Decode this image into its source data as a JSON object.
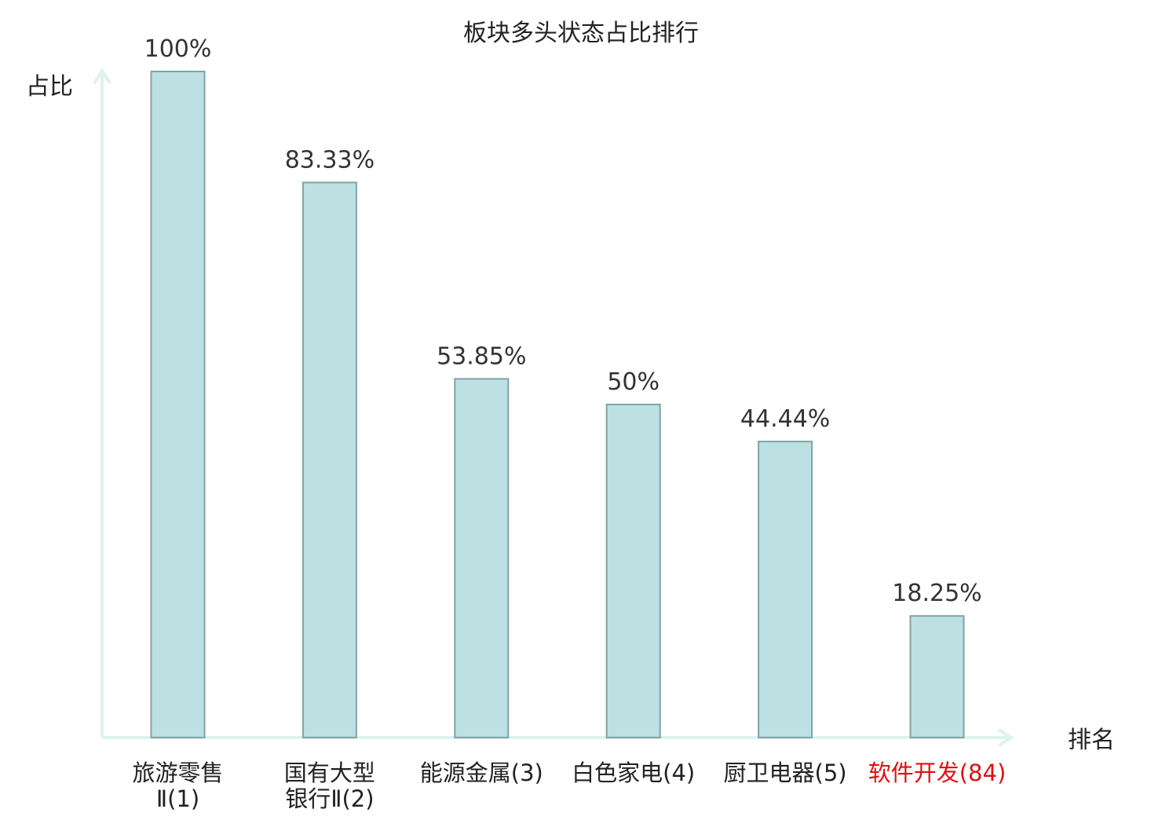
{
  "chart_data": {
    "type": "bar",
    "title": "板块多头状态占比排行",
    "ylabel": "占比",
    "xlabel": "排名",
    "ylim": [
      0,
      100
    ],
    "grid": false,
    "value_unit": "%",
    "categories": [
      {
        "lines": [
          "旅游零售",
          "Ⅱ(1)"
        ],
        "highlight": false
      },
      {
        "lines": [
          "国有大型",
          "银行Ⅱ(2)"
        ],
        "highlight": false
      },
      {
        "lines": [
          "能源金属(3)"
        ],
        "highlight": false
      },
      {
        "lines": [
          "白色家电(4)"
        ],
        "highlight": false
      },
      {
        "lines": [
          "厨卫电器(5)"
        ],
        "highlight": false
      },
      {
        "lines": [
          "软件开发(84)"
        ],
        "highlight": true
      }
    ],
    "values": [
      100,
      83.33,
      53.85,
      50,
      44.44,
      18.25
    ],
    "value_labels": [
      "100%",
      "83.33%",
      "53.85%",
      "50%",
      "44.44%",
      "18.25%"
    ]
  },
  "colors": {
    "bar_fill": "#bde0e3",
    "bar_stroke": "#7fa3a6",
    "axis": "#def2ee",
    "text": "#333333",
    "label": "#222222",
    "highlight": "#e01010"
  }
}
